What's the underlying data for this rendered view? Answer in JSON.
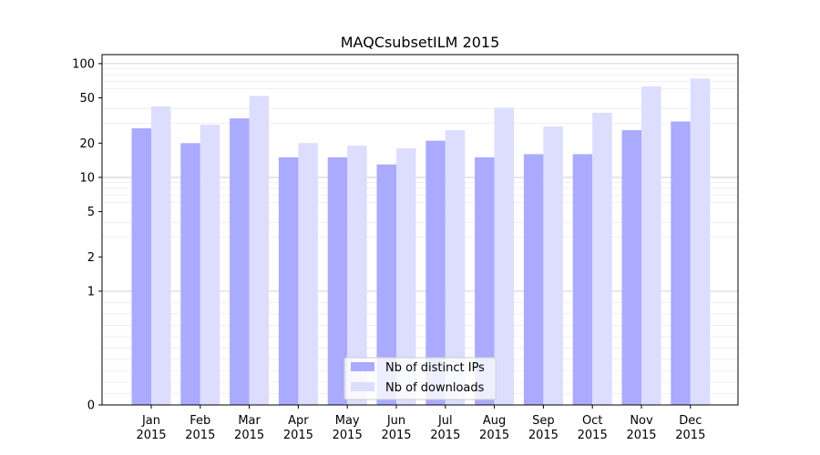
{
  "chart_data": {
    "type": "bar",
    "title": "MAQCsubsetILM 2015",
    "xlabel": "",
    "ylabel": "",
    "yscale": "symlog",
    "ylim": [
      0,
      120
    ],
    "yticks": [
      0,
      1,
      2,
      5,
      10,
      20,
      50,
      100
    ],
    "grid": true,
    "legend_position": "bottom-center",
    "categories": [
      {
        "month": "Jan",
        "year": "2015"
      },
      {
        "month": "Feb",
        "year": "2015"
      },
      {
        "month": "Mar",
        "year": "2015"
      },
      {
        "month": "Apr",
        "year": "2015"
      },
      {
        "month": "May",
        "year": "2015"
      },
      {
        "month": "Jun",
        "year": "2015"
      },
      {
        "month": "Jul",
        "year": "2015"
      },
      {
        "month": "Aug",
        "year": "2015"
      },
      {
        "month": "Sep",
        "year": "2015"
      },
      {
        "month": "Oct",
        "year": "2015"
      },
      {
        "month": "Nov",
        "year": "2015"
      },
      {
        "month": "Dec",
        "year": "2015"
      }
    ],
    "series": [
      {
        "name": "Nb of distinct IPs",
        "color": "#aaaaff",
        "values": [
          27,
          20,
          33,
          15,
          15,
          13,
          21,
          15,
          16,
          16,
          26,
          31
        ]
      },
      {
        "name": "Nb of downloads",
        "color": "#ddddff",
        "values": [
          42,
          29,
          52,
          20,
          19,
          18,
          26,
          41,
          28,
          37,
          63,
          74
        ]
      }
    ]
  }
}
